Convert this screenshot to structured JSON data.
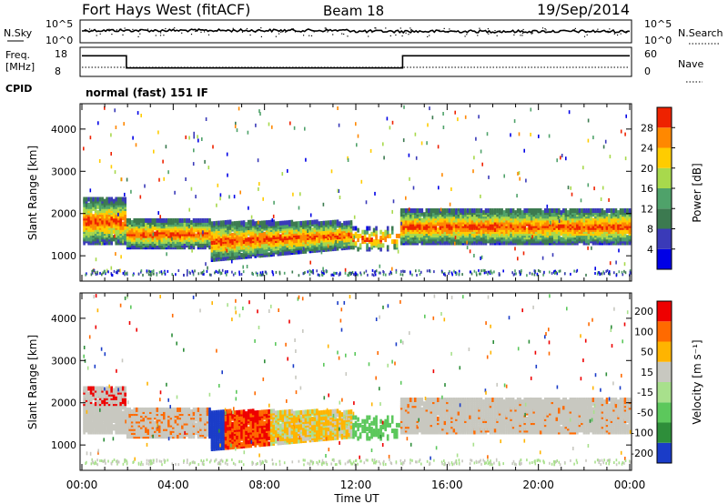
{
  "header": {
    "title": "Fort Hays West (fitACF)",
    "beam": "Beam 18",
    "date": "19/Sep/2014",
    "mode": "normal (fast) 151 IF"
  },
  "noise_panel": {
    "left_label": "N.Sky",
    "right_label": "N.Search",
    "left_ticks": [
      "10^5",
      "10^0"
    ],
    "right_ticks": [
      "10^5",
      "10^0"
    ]
  },
  "freq_panel": {
    "left_label_line1": "Freq.",
    "left_label_line2": "[MHz]",
    "cpid_label": "CPID",
    "right_label": "Nave",
    "left_ticks": [
      "18",
      "8"
    ],
    "right_ticks": [
      "60",
      "0"
    ],
    "freq_step_hours": [
      [
        0,
        16
      ],
      [
        1.95,
        11
      ],
      [
        14.05,
        16
      ],
      [
        24,
        16
      ]
    ]
  },
  "chart_data": [
    {
      "type": "heatmap",
      "name": "power",
      "ylabel": "Slant Range [km]",
      "xlabel": "Time UT",
      "x_ticks": [
        "00:00",
        "04:00",
        "08:00",
        "12:00",
        "16:00",
        "20:00",
        "00:00"
      ],
      "y_ticks": [
        1000,
        2000,
        3000,
        4000
      ],
      "ylim": [
        400,
        4600
      ],
      "xlim_hours": [
        0,
        24
      ],
      "colorbar_label": "Power [dB]",
      "colorbar_ticks": [
        "4",
        "8",
        "12",
        "16",
        "20",
        "24",
        "28"
      ],
      "colorbar_range": [
        0,
        30
      ],
      "colors": [
        "#0000e6",
        "#3a3ab8",
        "#3c7a50",
        "#4fa26a",
        "#a8d94c",
        "#ffcc00",
        "#ff8800",
        "#ee2200"
      ]
    },
    {
      "type": "heatmap",
      "name": "velocity",
      "ylabel": "Slant Range [km]",
      "xlabel": "Time UT",
      "x_ticks": [
        "00:00",
        "04:00",
        "08:00",
        "12:00",
        "16:00",
        "20:00",
        "00:00"
      ],
      "y_ticks": [
        1000,
        2000,
        3000,
        4000
      ],
      "ylim": [
        400,
        4600
      ],
      "xlim_hours": [
        0,
        24
      ],
      "colorbar_label": "Velocity [m s⁻¹]",
      "colorbar_ticks": [
        "200",
        "100",
        "50",
        "15",
        "-15",
        "-50",
        "-100",
        "-200"
      ],
      "colorbar_range": [
        -250,
        250
      ],
      "colors": [
        "#1a3cc8",
        "#2e8e3a",
        "#5cc85c",
        "#a8e08c",
        "#c8c8c0",
        "#ffb400",
        "#ff6a00",
        "#ee0000"
      ]
    }
  ]
}
